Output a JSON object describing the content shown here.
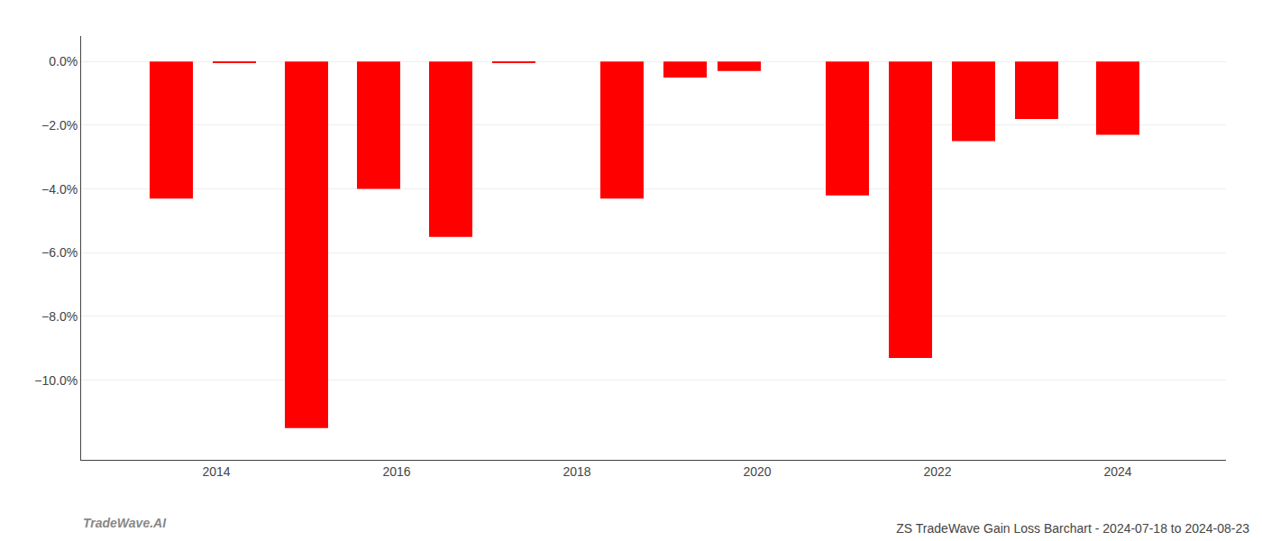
{
  "chart_data": {
    "type": "bar",
    "title": "ZS TradeWave Gain Loss Barchart - 2024-07-18 to 2024-08-23",
    "annotations": [
      "TradeWave.AI"
    ],
    "x": [
      2013.5,
      2014.2,
      2015.0,
      2015.8,
      2016.6,
      2017.3,
      2018.5,
      2019.2,
      2019.8,
      2021.0,
      2021.7,
      2022.4,
      2023.1,
      2024.0
    ],
    "values": [
      -4.3,
      -0.05,
      -11.5,
      -4.0,
      -5.5,
      -0.05,
      -4.3,
      -0.5,
      -0.3,
      -4.2,
      -9.3,
      -2.5,
      -1.8,
      -2.3
    ],
    "color": "#ff0000",
    "xlim": [
      2012.5,
      2025.2
    ],
    "xticks": [
      2014,
      2016,
      2018,
      2020,
      2022,
      2024
    ],
    "ylim": [
      -12.5,
      0.8
    ],
    "yticks": [
      {
        "value": 0.0,
        "label": "0.0%"
      },
      {
        "value": -2.0,
        "label": "−2.0%"
      },
      {
        "value": -4.0,
        "label": "−4.0%"
      },
      {
        "value": -6.0,
        "label": "−6.0%"
      },
      {
        "value": -8.0,
        "label": "−8.0%"
      },
      {
        "value": -10.0,
        "label": "−10.0%"
      }
    ],
    "grid": true
  }
}
